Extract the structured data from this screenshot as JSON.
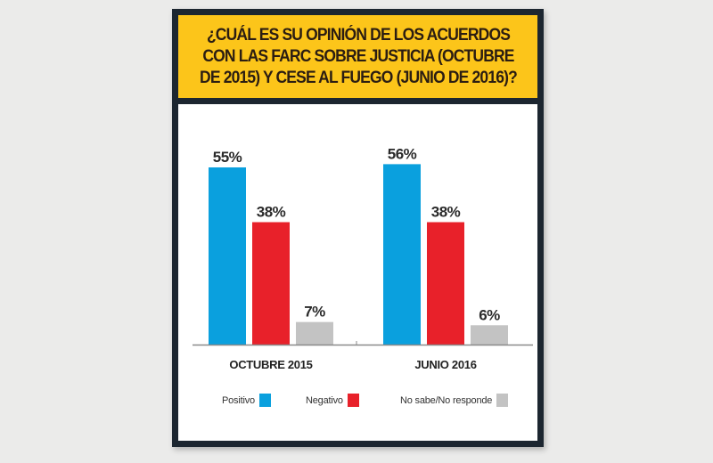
{
  "chart_data": {
    "type": "bar",
    "title": "¿CUÁL ES SU OPINIÓN DE LOS ACUERDOS CON LAS FARC SOBRE JUSTICIA (OCTUBRE DE 2015) Y CESE AL FUEGO (JUNIO DE 2016)?",
    "categories": [
      "OCTUBRE 2015",
      "JUNIO 2016"
    ],
    "series": [
      {
        "name": "Positivo",
        "color": "#0aa0de",
        "values": [
          55,
          56
        ],
        "labels": [
          "55%",
          "56%"
        ]
      },
      {
        "name": "Negativo",
        "color": "#e8212a",
        "values": [
          38,
          38
        ],
        "labels": [
          "38%",
          "38%"
        ]
      },
      {
        "name": "No sabe/No responde",
        "color": "#c3c3c3",
        "values": [
          7,
          6
        ],
        "labels": [
          "7%",
          "6%"
        ]
      }
    ],
    "unit": "%",
    "xlabel": "",
    "ylabel": "",
    "ylim": [
      0,
      60
    ],
    "grid": false,
    "legend_position": "bottom"
  },
  "colors": {
    "header_background": "#fcc51a",
    "frame": "#1c2630",
    "page_background": "#ebebea"
  }
}
